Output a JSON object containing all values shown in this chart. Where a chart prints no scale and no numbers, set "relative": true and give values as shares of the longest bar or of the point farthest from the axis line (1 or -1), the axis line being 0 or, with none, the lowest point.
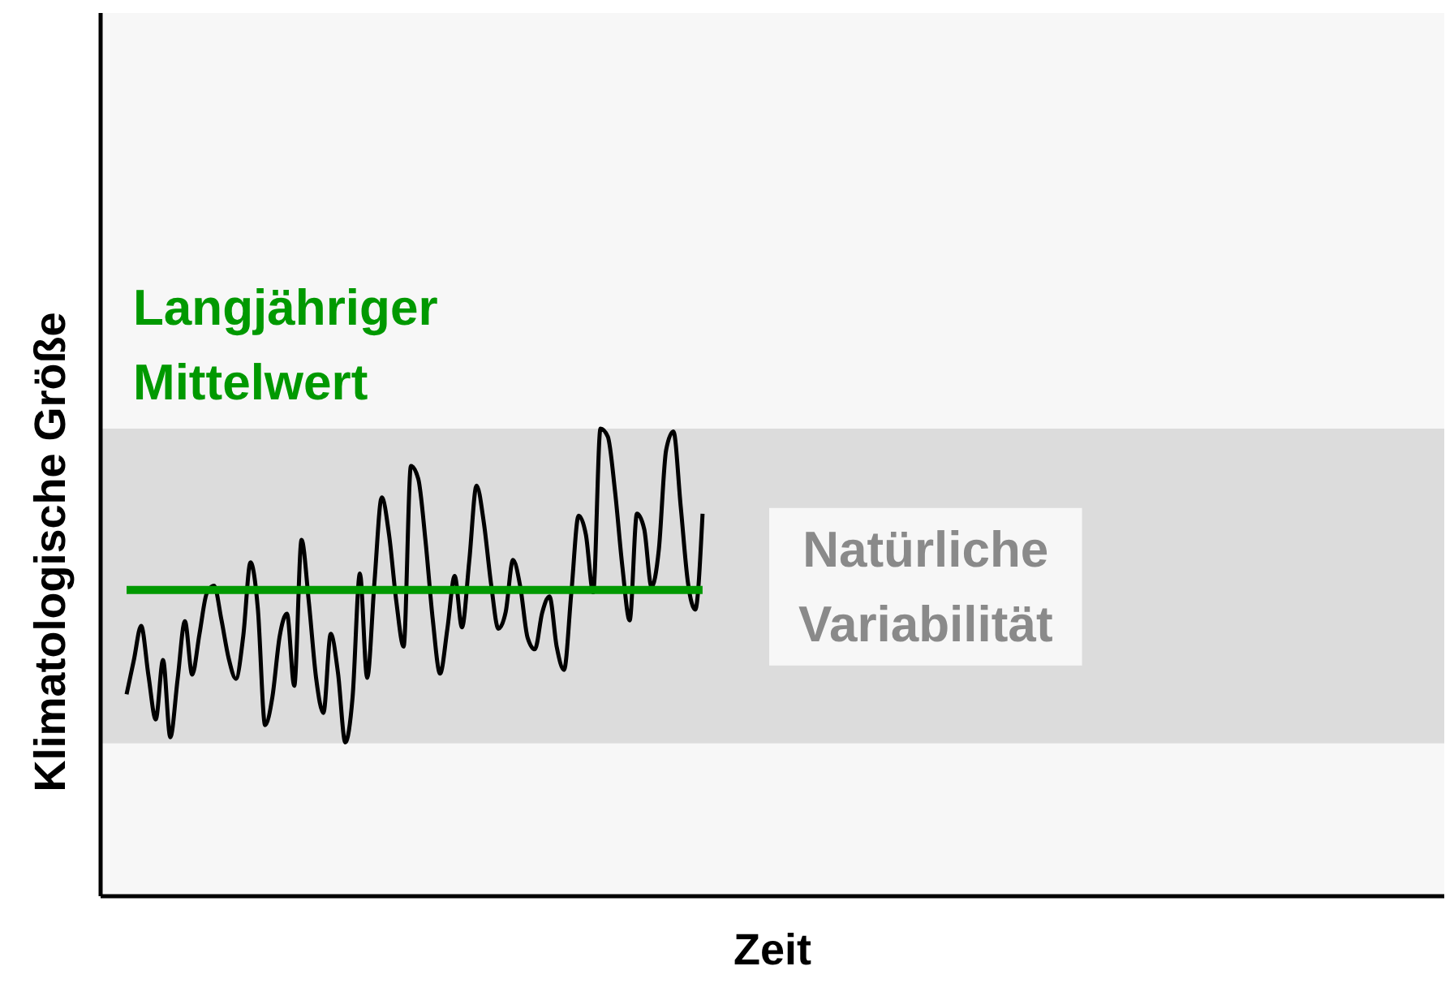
{
  "chart_data": {
    "type": "line",
    "xlabel": "Zeit",
    "ylabel": "Klimatologische Größe",
    "relative": true,
    "marker": "none",
    "line_style": "solid",
    "categories": [
      null,
      null,
      null,
      null,
      null,
      null,
      null,
      null,
      null,
      null,
      null,
      null,
      null,
      null,
      null,
      null,
      null,
      null,
      null,
      null,
      null,
      null,
      null,
      null,
      null,
      null,
      null,
      null,
      null,
      null,
      null,
      null,
      null,
      null,
      null,
      null,
      null,
      null,
      null,
      null,
      null,
      null,
      null,
      null,
      null,
      null,
      null,
      null,
      null,
      null,
      null,
      null,
      null,
      null,
      null,
      null,
      null,
      null,
      null,
      null,
      null,
      null,
      null,
      null,
      null,
      null,
      null,
      null,
      null,
      null,
      null,
      null,
      null,
      null,
      null,
      null,
      null,
      null,
      null,
      null
    ],
    "bands": [
      {
        "axis": "y",
        "from": 0.327,
        "to": 1.0,
        "label": "Natürliche Variabilität",
        "color": "#dcdcdc"
      }
    ],
    "series": [
      {
        "color": "#000000",
        "values": [
          0.432,
          0.505,
          0.578,
          0.472,
          0.378,
          0.505,
          0.34,
          0.464,
          0.588,
          0.474,
          0.561,
          0.648,
          0.664,
          0.592,
          0.509,
          0.465,
          0.556,
          0.714,
          0.616,
          0.366,
          0.426,
          0.556,
          0.604,
          0.45,
          0.762,
          0.629,
          0.466,
          0.392,
          0.561,
          0.477,
          0.329,
          0.426,
          0.69,
          0.467,
          0.672,
          0.853,
          0.773,
          0.63,
          0.534,
          0.92,
          0.893,
          0.76,
          0.591,
          0.476,
          0.572,
          0.685,
          0.575,
          0.717,
          0.878,
          0.799,
          0.667,
          0.572,
          0.608,
          0.719,
          0.662,
          0.553,
          0.528,
          0.606,
          0.641,
          0.533,
          0.484,
          0.649,
          0.814,
          0.773,
          0.65,
          1.0,
          0.983,
          0.865,
          0.705,
          0.59,
          0.818,
          0.785,
          0.661,
          0.741,
          0.954,
          0.994,
          0.834,
          0.67,
          0.613,
          0.818
        ]
      },
      {
        "name": "Langjähriger Mittelwert",
        "color": "#009900",
        "values": [
          0.655,
          0.655,
          0.655,
          0.655,
          0.655,
          0.655,
          0.655,
          0.655,
          0.655,
          0.655,
          0.655,
          0.655,
          0.655,
          0.655,
          0.655,
          0.655,
          0.655,
          0.655,
          0.655,
          0.655,
          0.655,
          0.655,
          0.655,
          0.655,
          0.655,
          0.655,
          0.655,
          0.655,
          0.655,
          0.655,
          0.655,
          0.655,
          0.655,
          0.655,
          0.655,
          0.655,
          0.655,
          0.655,
          0.655,
          0.655,
          0.655,
          0.655,
          0.655,
          0.655,
          0.655,
          0.655,
          0.655,
          0.655,
          0.655,
          0.655,
          0.655,
          0.655,
          0.655,
          0.655,
          0.655,
          0.655,
          0.655,
          0.655,
          0.655,
          0.655,
          0.655,
          0.655,
          0.655,
          0.655,
          0.655,
          0.655,
          0.655,
          0.655,
          0.655,
          0.655,
          0.655,
          0.655,
          0.655,
          0.655,
          0.655,
          0.655,
          0.655,
          0.655,
          0.655,
          0.655
        ]
      }
    ]
  }
}
